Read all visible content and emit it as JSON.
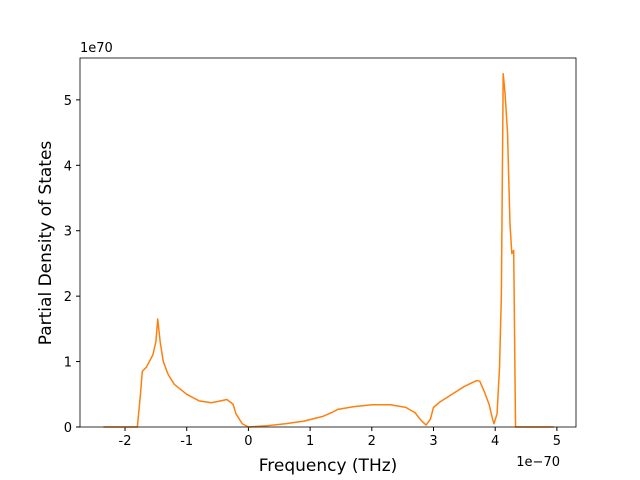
{
  "chart_data": {
    "type": "line",
    "xlabel": "Frequency (THz)",
    "ylabel": "Partial Density of States",
    "x_offset_label": "1e−70",
    "y_offset_label": "1e70",
    "x": [
      -2.35,
      -1.8,
      -1.75,
      -1.72,
      -1.65,
      -1.55,
      -1.5,
      -1.47,
      -1.43,
      -1.38,
      -1.3,
      -1.2,
      -1.0,
      -0.8,
      -0.6,
      -0.45,
      -0.35,
      -0.25,
      -0.2,
      -0.1,
      0,
      0.3,
      0.6,
      0.9,
      1.2,
      1.35,
      1.45,
      1.7,
      2.0,
      2.3,
      2.55,
      2.7,
      2.8,
      2.88,
      2.95,
      3.0,
      3.1,
      3.3,
      3.5,
      3.7,
      3.75,
      3.82,
      3.9,
      3.95,
      3.98,
      4.03,
      4.07,
      4.1,
      4.13,
      4.16,
      4.2,
      4.24,
      4.27,
      4.3,
      4.33,
      4.5,
      4.95
    ],
    "series": [
      {
        "color": "#ff7f0e",
        "values": [
          0,
          0,
          0.5,
          0.85,
          0.92,
          1.1,
          1.3,
          1.65,
          1.3,
          1.0,
          0.8,
          0.65,
          0.5,
          0.4,
          0.37,
          0.4,
          0.42,
          0.35,
          0.2,
          0.05,
          0,
          0.02,
          0.05,
          0.09,
          0.16,
          0.22,
          0.27,
          0.31,
          0.34,
          0.34,
          0.3,
          0.22,
          0.1,
          0.03,
          0.12,
          0.3,
          0.38,
          0.5,
          0.62,
          0.71,
          0.7,
          0.55,
          0.35,
          0.15,
          0.05,
          0.2,
          0.9,
          2.0,
          5.4,
          5.1,
          4.5,
          3.1,
          2.65,
          2.7,
          0,
          0,
          0
        ]
      }
    ],
    "xlim": [
      -2.73,
      5.31
    ],
    "ylim": [
      0,
      5.64
    ],
    "xticks": [
      -2,
      -1,
      0,
      1,
      2,
      3,
      4,
      5
    ],
    "yticks": [
      0,
      1,
      2,
      3,
      4,
      5
    ]
  }
}
